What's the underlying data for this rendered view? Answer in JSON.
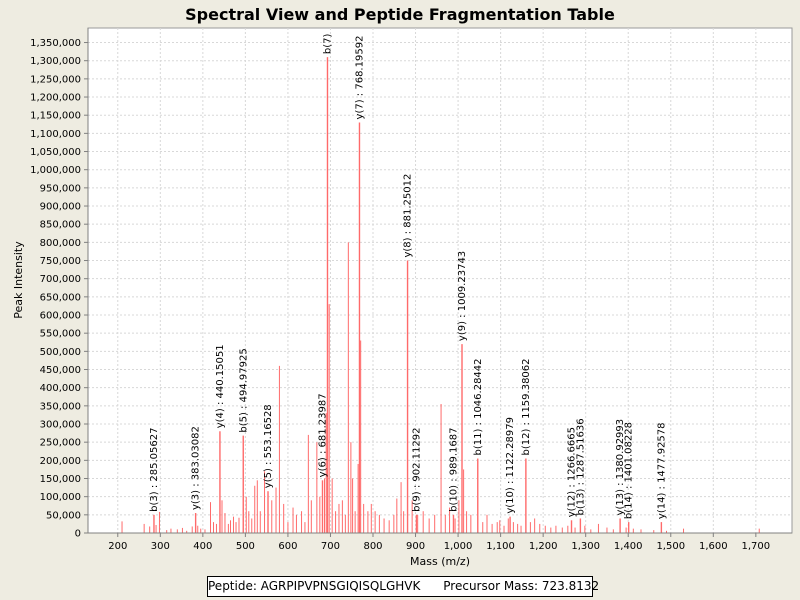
{
  "chart_data": {
    "type": "bar",
    "title": "Spectral View and Peptide Fragmentation Table",
    "xlabel": "Mass (m/z)",
    "ylabel": "Peak Intensity",
    "xlim": [
      130,
      1785
    ],
    "ylim": [
      0,
      1390000
    ],
    "x_ticks": [
      200,
      300,
      400,
      500,
      600,
      700,
      800,
      900,
      1000,
      1100,
      1200,
      1300,
      1400,
      1500,
      1600,
      1700
    ],
    "y_ticks": [
      0,
      50000,
      100000,
      150000,
      200000,
      250000,
      300000,
      350000,
      400000,
      450000,
      500000,
      550000,
      600000,
      650000,
      700000,
      750000,
      800000,
      850000,
      900000,
      950000,
      1000000,
      1050000,
      1100000,
      1150000,
      1200000,
      1250000,
      1300000,
      1350000
    ],
    "grid": true,
    "color": "#ff6a6a",
    "annotated_peaks": [
      {
        "mz": 285.05627,
        "intensity": 50000,
        "label": "b(3) : 285.05627"
      },
      {
        "mz": 383.03082,
        "intensity": 55000,
        "label": "y(3) : 383.03082"
      },
      {
        "mz": 440.15051,
        "intensity": 280000,
        "label": "y(4) : 440.15051"
      },
      {
        "mz": 494.97925,
        "intensity": 268000,
        "label": "b(5) : 494.97925"
      },
      {
        "mz": 553.16528,
        "intensity": 115000,
        "label": "y(5) : 553.16528"
      },
      {
        "mz": 681.23987,
        "intensity": 145000,
        "label": "y(6) : 681.23987"
      },
      {
        "mz": 693.0,
        "intensity": 1310000,
        "label": "b(7)"
      },
      {
        "mz": 768.19592,
        "intensity": 1130000,
        "label": "y(7) : 768.19592"
      },
      {
        "mz": 881.25012,
        "intensity": 750000,
        "label": "y(8) : 881.25012"
      },
      {
        "mz": 902.11292,
        "intensity": 50000,
        "label": "b(9) : 902.11292"
      },
      {
        "mz": 989.1687,
        "intensity": 50000,
        "label": "b(10) : 989.1687"
      },
      {
        "mz": 1009.23743,
        "intensity": 520000,
        "label": "y(9) : 1009.23743"
      },
      {
        "mz": 1046.28442,
        "intensity": 205000,
        "label": "b(11) : 1046.28442"
      },
      {
        "mz": 1122.28979,
        "intensity": 45000,
        "label": "y(10) : 1122.28979"
      },
      {
        "mz": 1159.38062,
        "intensity": 205000,
        "label": "b(12) : 1159.38062"
      },
      {
        "mz": 1266.6665,
        "intensity": 35000,
        "label": "y(12) : 1266.6665"
      },
      {
        "mz": 1287.51636,
        "intensity": 40000,
        "label": "b(13) : 1287.51636"
      },
      {
        "mz": 1380.92993,
        "intensity": 40000,
        "label": "y(13) : 1380.92993"
      },
      {
        "mz": 1401.08228,
        "intensity": 30000,
        "label": "b(14) : 1401.08228"
      },
      {
        "mz": 1477.92578,
        "intensity": 30000,
        "label": "y(14) : 1477.92578"
      }
    ],
    "peaks": [
      [
        210,
        32000
      ],
      [
        262,
        25000
      ],
      [
        275,
        18000
      ],
      [
        290,
        22000
      ],
      [
        298,
        58000
      ],
      [
        315,
        8000
      ],
      [
        325,
        12000
      ],
      [
        340,
        10000
      ],
      [
        352,
        14000
      ],
      [
        362,
        6000
      ],
      [
        375,
        18000
      ],
      [
        388,
        20000
      ],
      [
        395,
        12000
      ],
      [
        405,
        10000
      ],
      [
        418,
        85000
      ],
      [
        425,
        30000
      ],
      [
        432,
        25000
      ],
      [
        445,
        90000
      ],
      [
        452,
        55000
      ],
      [
        460,
        25000
      ],
      [
        465,
        35000
      ],
      [
        472,
        45000
      ],
      [
        478,
        30000
      ],
      [
        485,
        42000
      ],
      [
        502,
        100000
      ],
      [
        508,
        60000
      ],
      [
        515,
        40000
      ],
      [
        522,
        130000
      ],
      [
        528,
        145000
      ],
      [
        535,
        60000
      ],
      [
        545,
        170000
      ],
      [
        562,
        90000
      ],
      [
        572,
        125000
      ],
      [
        580,
        460000
      ],
      [
        590,
        80000
      ],
      [
        600,
        30000
      ],
      [
        612,
        70000
      ],
      [
        620,
        50000
      ],
      [
        632,
        60000
      ],
      [
        640,
        30000
      ],
      [
        648,
        270000
      ],
      [
        655,
        90000
      ],
      [
        668,
        250000
      ],
      [
        675,
        100000
      ],
      [
        686,
        150000
      ],
      [
        690,
        330000
      ],
      [
        697,
        630000
      ],
      [
        704,
        150000
      ],
      [
        712,
        60000
      ],
      [
        720,
        80000
      ],
      [
        728,
        90000
      ],
      [
        735,
        50000
      ],
      [
        742,
        800000
      ],
      [
        748,
        250000
      ],
      [
        752,
        150000
      ],
      [
        758,
        60000
      ],
      [
        765,
        190000
      ],
      [
        771,
        530000
      ],
      [
        778,
        80000
      ],
      [
        788,
        60000
      ],
      [
        796,
        80000
      ],
      [
        805,
        60000
      ],
      [
        815,
        50000
      ],
      [
        826,
        40000
      ],
      [
        838,
        35000
      ],
      [
        849,
        50000
      ],
      [
        856,
        95000
      ],
      [
        866,
        140000
      ],
      [
        872,
        60000
      ],
      [
        892,
        90000
      ],
      [
        905,
        50000
      ],
      [
        918,
        60000
      ],
      [
        932,
        40000
      ],
      [
        945,
        50000
      ],
      [
        960,
        355000
      ],
      [
        970,
        50000
      ],
      [
        980,
        70000
      ],
      [
        993,
        40000
      ],
      [
        1002,
        90000
      ],
      [
        1013,
        175000
      ],
      [
        1020,
        60000
      ],
      [
        1030,
        50000
      ],
      [
        1058,
        30000
      ],
      [
        1068,
        50000
      ],
      [
        1080,
        25000
      ],
      [
        1092,
        30000
      ],
      [
        1098,
        35000
      ],
      [
        1108,
        20000
      ],
      [
        1118,
        40000
      ],
      [
        1130,
        30000
      ],
      [
        1140,
        25000
      ],
      [
        1148,
        20000
      ],
      [
        1170,
        30000
      ],
      [
        1180,
        40000
      ],
      [
        1192,
        25000
      ],
      [
        1205,
        20000
      ],
      [
        1218,
        15000
      ],
      [
        1230,
        20000
      ],
      [
        1245,
        15000
      ],
      [
        1258,
        20000
      ],
      [
        1275,
        15000
      ],
      [
        1298,
        20000
      ],
      [
        1312,
        10000
      ],
      [
        1330,
        25000
      ],
      [
        1350,
        15000
      ],
      [
        1365,
        10000
      ],
      [
        1395,
        15000
      ],
      [
        1412,
        12000
      ],
      [
        1430,
        10000
      ],
      [
        1460,
        8000
      ],
      [
        1490,
        6000
      ],
      [
        1530,
        12000
      ],
      [
        1708,
        12000
      ]
    ]
  },
  "info": {
    "peptide": "Peptide: AGRPIPVPNSGIQISQLGHVK",
    "precursor": "Precursor Mass: 723.8132"
  }
}
